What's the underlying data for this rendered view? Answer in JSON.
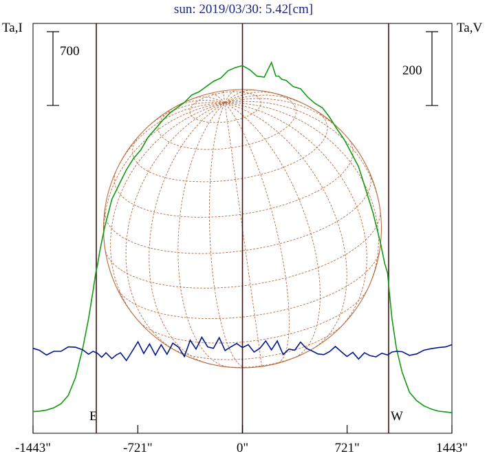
{
  "chart_data": {
    "type": "line",
    "title": "sun: 2019/03/30: 5.42[cm]",
    "left_axis_label": "Ta,I",
    "right_axis_label": "Ta,V",
    "scale_bar_left": "700",
    "scale_bar_right": "200",
    "east_label": "E",
    "west_label": "W",
    "xlim": [
      -1443,
      1443
    ],
    "x_ticks": [
      -1443,
      -721,
      0,
      721,
      1443
    ],
    "x_tick_labels": [
      "-1443\"",
      "-721\"",
      "0\"",
      "721\"",
      "1443\""
    ],
    "limb_lines": [
      -1007,
      0,
      1007
    ],
    "colors": {
      "stokes_i": "#119911",
      "stokes_v": "#00148c",
      "grid": "#b8693c",
      "limb": "#3a1010"
    },
    "series": [
      {
        "name": "Ta,I",
        "color": "#119911",
        "x": [
          -1443,
          -1400,
          -1350,
          -1300,
          -1250,
          -1200,
          -1150,
          -1100,
          -1060,
          -1030,
          -1010,
          -1000,
          -980,
          -950,
          -900,
          -850,
          -800,
          -750,
          -700,
          -650,
          -600,
          -550,
          -500,
          -450,
          -400,
          -350,
          -300,
          -250,
          -200,
          -150,
          -100,
          -50,
          0,
          50,
          100,
          150,
          200,
          230,
          250,
          270,
          300,
          350,
          400,
          450,
          500,
          550,
          600,
          650,
          700,
          750,
          800,
          850,
          900,
          950,
          980,
          1000,
          1010,
          1030,
          1060,
          1100,
          1150,
          1200,
          1250,
          1300,
          1350,
          1400,
          1443
        ],
        "y": [
          15,
          20,
          30,
          52,
          90,
          170,
          340,
          620,
          900,
          1160,
          1340,
          1400,
          1560,
          1760,
          2030,
          2170,
          2310,
          2420,
          2500,
          2620,
          2700,
          2780,
          2850,
          2900,
          2950,
          3020,
          3050,
          3100,
          3150,
          3180,
          3250,
          3280,
          3300,
          3260,
          3200,
          3190,
          3330,
          3200,
          3200,
          3170,
          3160,
          3100,
          3080,
          3000,
          2940,
          2900,
          2810,
          2700,
          2600,
          2470,
          2340,
          2120,
          1900,
          1620,
          1420,
          1330,
          1180,
          900,
          620,
          390,
          200,
          120,
          70,
          40,
          20,
          12,
          5
        ]
      },
      {
        "name": "Ta,V",
        "color": "#00148c",
        "x": [
          -1443,
          -1400,
          -1350,
          -1300,
          -1250,
          -1200,
          -1150,
          -1100,
          -1060,
          -1030,
          -1000,
          -970,
          -940,
          -900,
          -870,
          -840,
          -800,
          -760,
          -720,
          -680,
          -640,
          -600,
          -560,
          -520,
          -480,
          -440,
          -400,
          -360,
          -320,
          -280,
          -240,
          -200,
          -160,
          -120,
          -80,
          -40,
          0,
          40,
          80,
          120,
          160,
          200,
          240,
          280,
          320,
          360,
          400,
          440,
          480,
          520,
          560,
          600,
          640,
          680,
          720,
          760,
          800,
          840,
          880,
          920,
          960,
          1000,
          1030,
          1060,
          1100,
          1150,
          1200,
          1250,
          1300,
          1350,
          1400,
          1443
        ],
        "y": [
          0,
          -5,
          -18,
          -8,
          -8,
          4,
          3,
          -4,
          -16,
          -8,
          -13,
          -24,
          -12,
          -28,
          -18,
          -12,
          -33,
          -8,
          18,
          -14,
          12,
          -18,
          10,
          -16,
          14,
          3,
          -22,
          22,
          -2,
          30,
          4,
          0,
          29,
          -6,
          4,
          13,
          2,
          10,
          -10,
          0,
          20,
          -4,
          20,
          -17,
          -2,
          -5,
          17,
          0,
          -7,
          -15,
          -17,
          -9,
          5,
          -9,
          -22,
          -11,
          -29,
          -12,
          -20,
          -23,
          -13,
          -18,
          -10,
          -8,
          -9,
          -19,
          -15,
          -5,
          -1,
          2,
          4,
          10
        ]
      }
    ],
    "y_stokes_i_range": [
      -190,
      3700
    ],
    "y_stokes_v_range": [
      -230,
      880
    ],
    "scale_bar_left_value": 700,
    "scale_bar_right_value": 200,
    "grid": false,
    "legend": "none"
  }
}
